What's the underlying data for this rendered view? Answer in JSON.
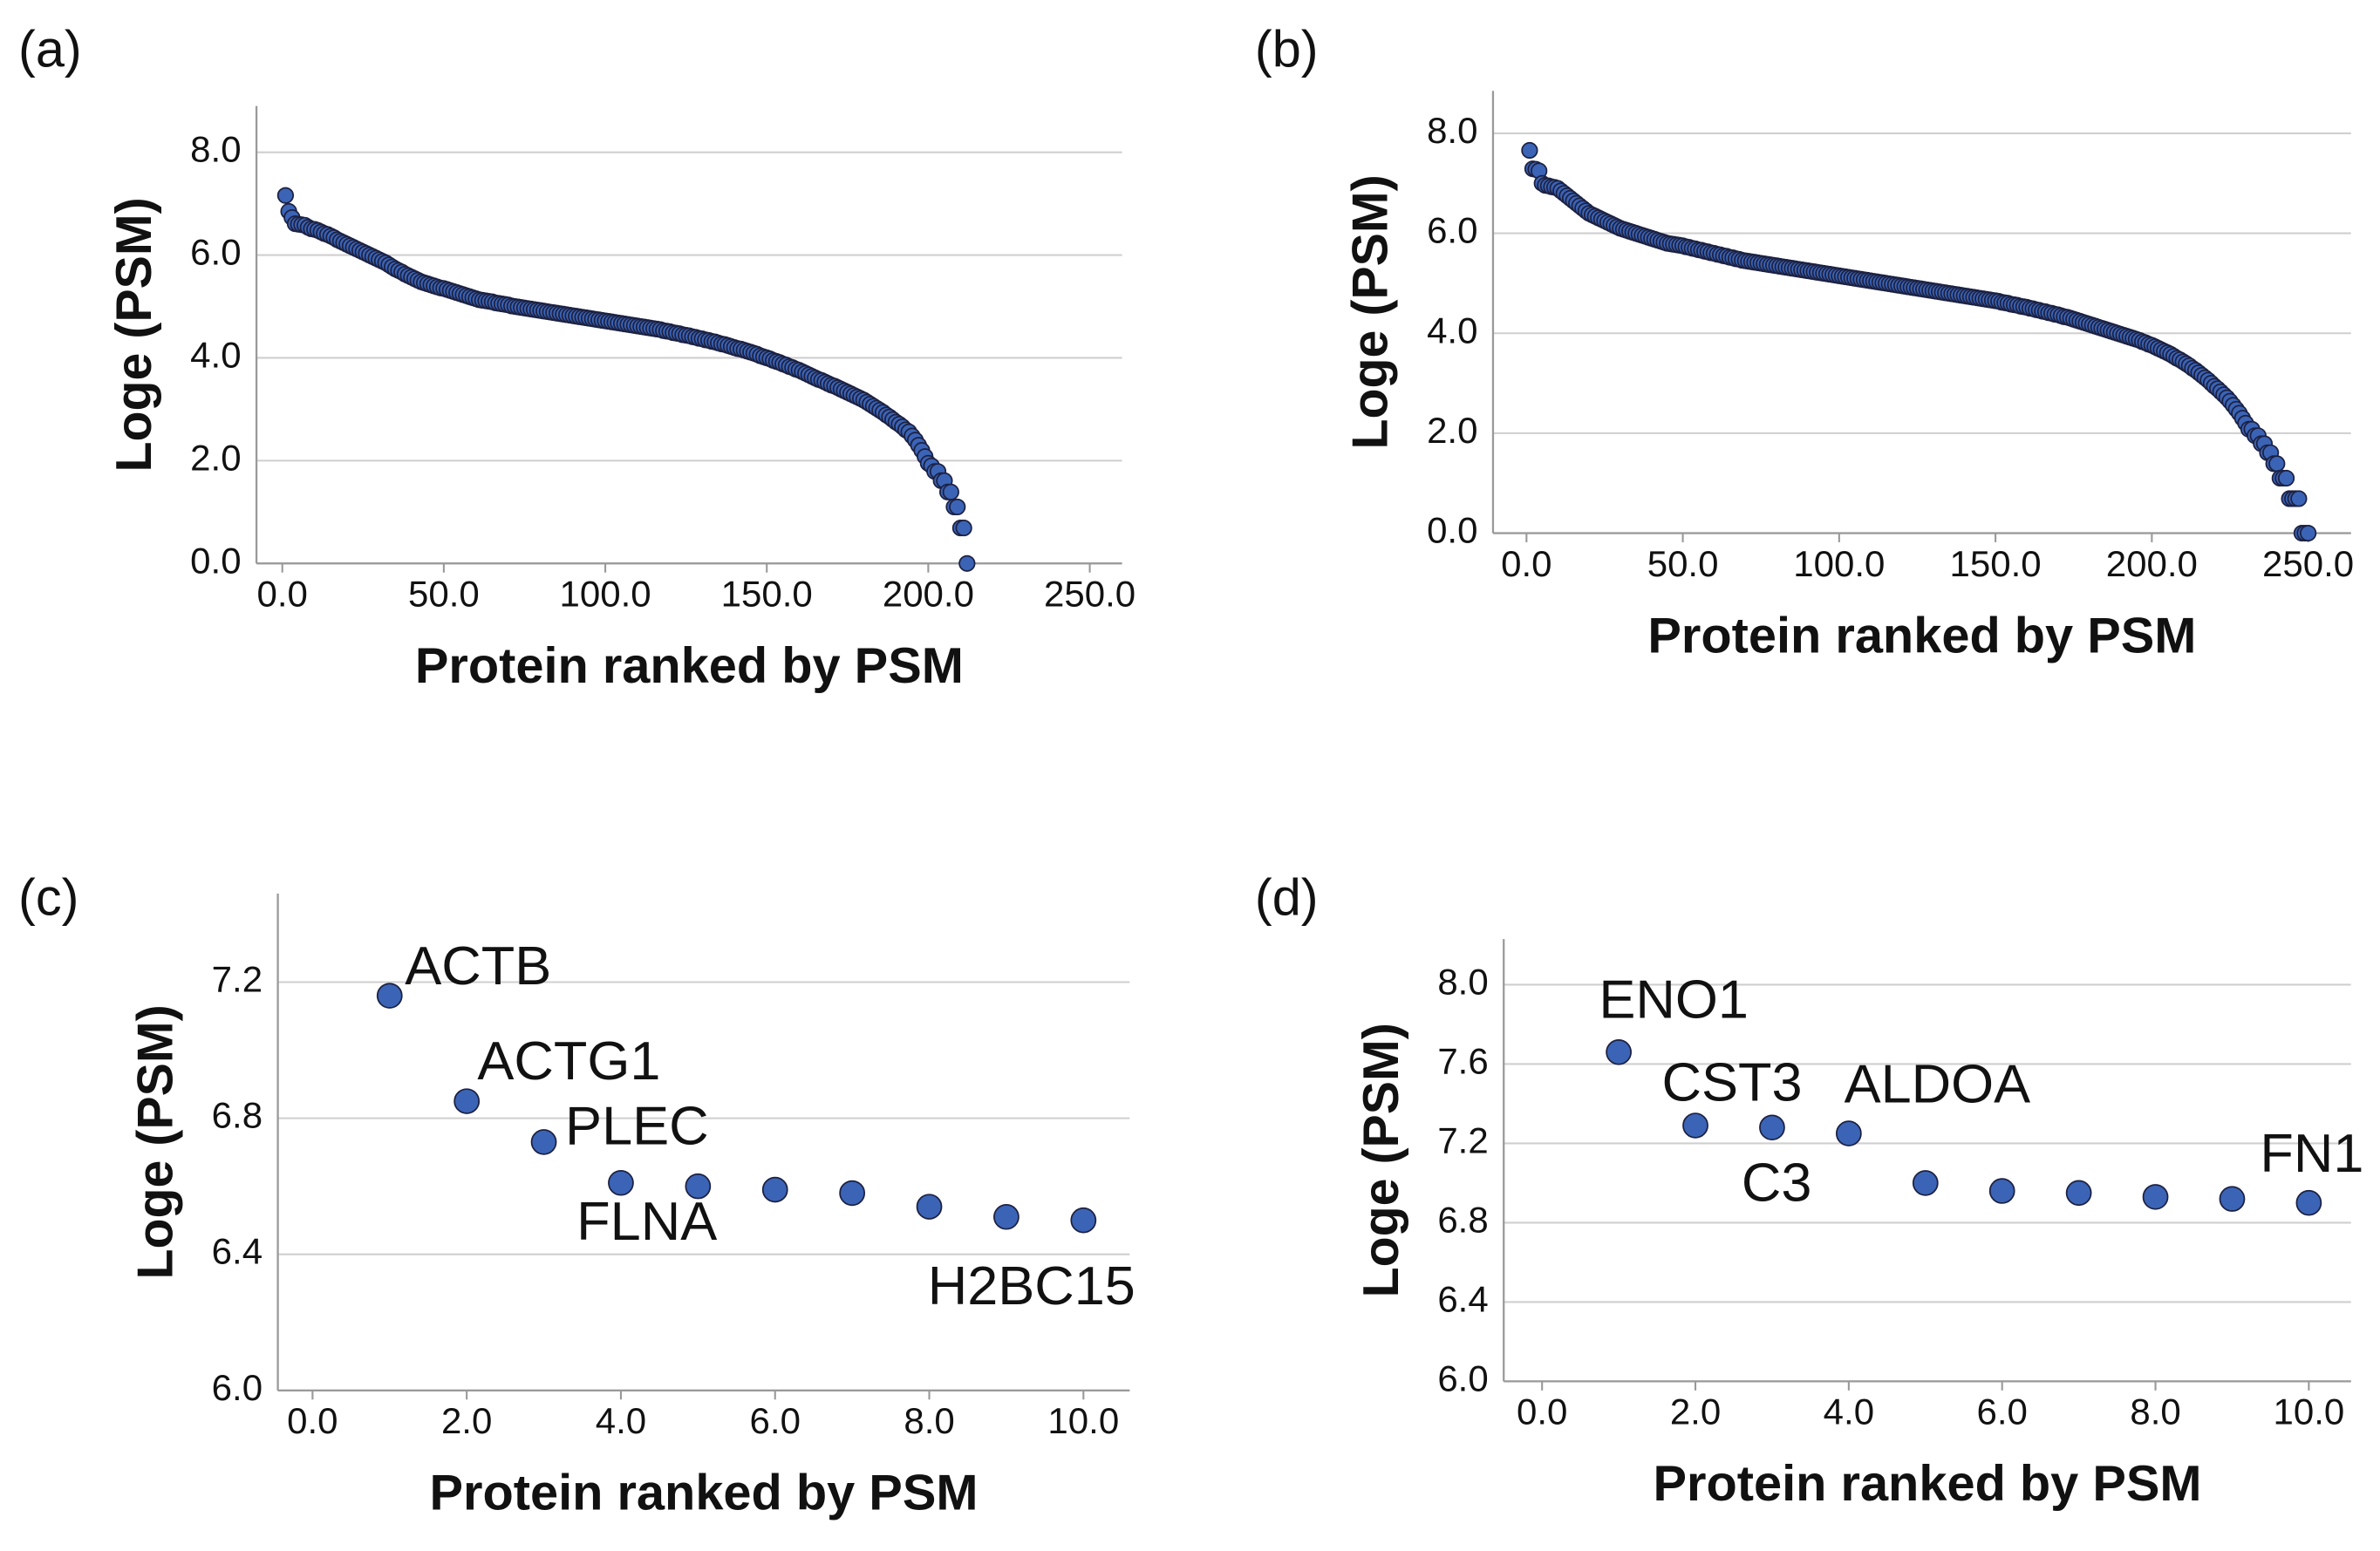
{
  "chart_data": [
    {
      "type": "scatter",
      "panel": "(a)",
      "xlabel": "Protein ranked by PSM",
      "ylabel": "Loge (PSM)",
      "color": "#3b64b6",
      "grid": true,
      "xlim": [
        -8,
        260
      ],
      "ylim": [
        0,
        8.9
      ],
      "xticks": [
        {
          "value": 0,
          "label": "0.0"
        },
        {
          "value": 50,
          "label": "50.0"
        },
        {
          "value": 100,
          "label": "100.0"
        },
        {
          "value": 150,
          "label": "150.0"
        },
        {
          "value": 200,
          "label": "200.0"
        },
        {
          "value": 250,
          "label": "250.0"
        }
      ],
      "yticks": [
        {
          "value": 0,
          "label": "0.0"
        },
        {
          "value": 2,
          "label": "2.0"
        },
        {
          "value": 4,
          "label": "4.0"
        },
        {
          "value": 6,
          "label": "6.0"
        },
        {
          "value": 8,
          "label": "8.0"
        }
      ],
      "x": [
        1,
        2,
        3,
        4,
        5,
        6,
        7,
        8,
        9,
        10,
        11,
        12,
        13,
        14,
        15,
        16,
        17,
        18,
        19,
        20,
        21,
        22,
        23,
        24,
        25,
        26,
        27,
        28,
        29,
        30,
        31,
        32,
        33,
        34,
        35,
        36,
        37,
        38,
        39,
        40,
        41,
        42,
        43,
        44,
        45,
        46,
        47,
        48,
        49,
        50,
        51,
        52,
        53,
        54,
        55,
        56,
        57,
        58,
        59,
        60,
        61,
        62,
        63,
        64,
        65,
        66,
        67,
        68,
        69,
        70,
        71,
        72,
        73,
        74,
        75,
        76,
        77,
        78,
        79,
        80,
        81,
        82,
        83,
        84,
        85,
        86,
        87,
        88,
        89,
        90,
        91,
        92,
        93,
        94,
        95,
        96,
        97,
        98,
        99,
        100,
        101,
        102,
        103,
        104,
        105,
        106,
        107,
        108,
        109,
        110,
        111,
        112,
        113,
        114,
        115,
        116,
        117,
        118,
        119,
        120,
        121,
        122,
        123,
        124,
        125,
        126,
        127,
        128,
        129,
        130,
        131,
        132,
        133,
        134,
        135,
        136,
        137,
        138,
        139,
        140,
        141,
        142,
        143,
        144,
        145,
        146,
        147,
        148,
        149,
        150,
        151,
        152,
        153,
        154,
        155,
        156,
        157,
        158,
        159,
        160,
        161,
        162,
        163,
        164,
        165,
        166,
        167,
        168,
        169,
        170,
        171,
        172,
        173,
        174,
        175,
        176,
        177,
        178,
        179,
        180,
        181,
        182,
        183,
        184,
        185,
        186,
        187,
        188,
        189,
        190,
        191,
        192,
        193,
        194,
        195,
        196,
        197,
        198,
        199,
        200,
        201,
        202,
        203,
        204,
        205,
        206,
        207,
        208,
        209,
        210,
        211,
        212
      ],
      "values": [
        7.16,
        6.85,
        6.73,
        6.61,
        6.6,
        6.59,
        6.58,
        6.54,
        6.51,
        6.5,
        6.48,
        6.45,
        6.42,
        6.4,
        6.37,
        6.34,
        6.3,
        6.27,
        6.24,
        6.21,
        6.18,
        6.15,
        6.12,
        6.09,
        6.06,
        6.03,
        6.0,
        5.97,
        5.94,
        5.91,
        5.88,
        5.85,
        5.81,
        5.77,
        5.73,
        5.7,
        5.67,
        5.63,
        5.6,
        5.57,
        5.54,
        5.51,
        5.48,
        5.46,
        5.44,
        5.42,
        5.4,
        5.38,
        5.36,
        5.35,
        5.33,
        5.31,
        5.29,
        5.27,
        5.25,
        5.23,
        5.21,
        5.19,
        5.17,
        5.15,
        5.13,
        5.12,
        5.11,
        5.1,
        5.09,
        5.07,
        5.06,
        5.05,
        5.04,
        5.03,
        5.01,
        5.0,
        4.99,
        4.98,
        4.97,
        4.96,
        4.95,
        4.94,
        4.93,
        4.92,
        4.91,
        4.9,
        4.89,
        4.88,
        4.87,
        4.86,
        4.85,
        4.84,
        4.83,
        4.82,
        4.81,
        4.8,
        4.79,
        4.78,
        4.77,
        4.76,
        4.75,
        4.74,
        4.73,
        4.72,
        4.71,
        4.7,
        4.69,
        4.68,
        4.67,
        4.66,
        4.65,
        4.64,
        4.63,
        4.62,
        4.61,
        4.6,
        4.59,
        4.58,
        4.57,
        4.56,
        4.55,
        4.53,
        4.52,
        4.51,
        4.49,
        4.48,
        4.47,
        4.45,
        4.44,
        4.43,
        4.41,
        4.4,
        4.38,
        4.37,
        4.35,
        4.34,
        4.32,
        4.31,
        4.29,
        4.27,
        4.26,
        4.24,
        4.22,
        4.2,
        4.18,
        4.17,
        4.15,
        4.13,
        4.11,
        4.09,
        4.07,
        4.04,
        4.02,
        4.0,
        3.98,
        3.95,
        3.93,
        3.91,
        3.88,
        3.86,
        3.83,
        3.81,
        3.78,
        3.76,
        3.73,
        3.7,
        3.67,
        3.64,
        3.61,
        3.58,
        3.56,
        3.53,
        3.5,
        3.47,
        3.45,
        3.42,
        3.39,
        3.36,
        3.33,
        3.3,
        3.27,
        3.24,
        3.21,
        3.18,
        3.14,
        3.1,
        3.06,
        3.02,
        2.98,
        2.94,
        2.89,
        2.85,
        2.8,
        2.75,
        2.71,
        2.66,
        2.6,
        2.56,
        2.48,
        2.4,
        2.3,
        2.2,
        2.08,
        1.95,
        1.9,
        1.79,
        1.79,
        1.61,
        1.61,
        1.39,
        1.39,
        1.1,
        1.1,
        0.69,
        0.69,
        0
      ]
    },
    {
      "type": "scatter",
      "panel": "(b)",
      "xlabel": "Protein ranked by PSM",
      "ylabel": "Loge (PSM)",
      "color": "#3b64b6",
      "grid": true,
      "xlim": [
        -10.7,
        263.7
      ],
      "ylim": [
        0,
        8.85
      ],
      "xticks": [
        {
          "value": 0,
          "label": "0.0"
        },
        {
          "value": 50,
          "label": "50.0"
        },
        {
          "value": 100,
          "label": "100.0"
        },
        {
          "value": 150,
          "label": "150.0"
        },
        {
          "value": 200,
          "label": "200.0"
        },
        {
          "value": 250,
          "label": "250.0"
        }
      ],
      "yticks": [
        {
          "value": 0,
          "label": "0.0"
        },
        {
          "value": 2,
          "label": "2.0"
        },
        {
          "value": 4,
          "label": "4.0"
        },
        {
          "value": 6,
          "label": "6.0"
        },
        {
          "value": 8,
          "label": "8.0"
        }
      ],
      "x": [
        1,
        2,
        3,
        4,
        5,
        6,
        7,
        8,
        9,
        10,
        11,
        12,
        13,
        14,
        15,
        16,
        17,
        18,
        19,
        20,
        21,
        22,
        23,
        24,
        25,
        26,
        27,
        28,
        29,
        30,
        31,
        32,
        33,
        34,
        35,
        36,
        37,
        38,
        39,
        40,
        41,
        42,
        43,
        44,
        45,
        46,
        47,
        48,
        49,
        50,
        51,
        52,
        53,
        54,
        55,
        56,
        57,
        58,
        59,
        60,
        61,
        62,
        63,
        64,
        65,
        66,
        67,
        68,
        69,
        70,
        71,
        72,
        73,
        74,
        75,
        76,
        77,
        78,
        79,
        80,
        81,
        82,
        83,
        84,
        85,
        86,
        87,
        88,
        89,
        90,
        91,
        92,
        93,
        94,
        95,
        96,
        97,
        98,
        99,
        100,
        101,
        102,
        103,
        104,
        105,
        106,
        107,
        108,
        109,
        110,
        111,
        112,
        113,
        114,
        115,
        116,
        117,
        118,
        119,
        120,
        121,
        122,
        123,
        124,
        125,
        126,
        127,
        128,
        129,
        130,
        131,
        132,
        133,
        134,
        135,
        136,
        137,
        138,
        139,
        140,
        141,
        142,
        143,
        144,
        145,
        146,
        147,
        148,
        149,
        150,
        151,
        152,
        153,
        154,
        155,
        156,
        157,
        158,
        159,
        160,
        161,
        162,
        163,
        164,
        165,
        166,
        167,
        168,
        169,
        170,
        171,
        172,
        173,
        174,
        175,
        176,
        177,
        178,
        179,
        180,
        181,
        182,
        183,
        184,
        185,
        186,
        187,
        188,
        189,
        190,
        191,
        192,
        193,
        194,
        195,
        196,
        197,
        198,
        199,
        200,
        201,
        202,
        203,
        204,
        205,
        206,
        207,
        208,
        209,
        210,
        211,
        212,
        213,
        214,
        215,
        216,
        217,
        218,
        219,
        220,
        221,
        222,
        223,
        224,
        225,
        226,
        227,
        228,
        229,
        230,
        231,
        232,
        233,
        234,
        235,
        236,
        237,
        238,
        239,
        240,
        241,
        242,
        243,
        244,
        245,
        246,
        247,
        248,
        249,
        250
      ],
      "values": [
        7.66,
        7.29,
        7.28,
        7.25,
        7.0,
        6.96,
        6.95,
        6.93,
        6.92,
        6.9,
        6.85,
        6.8,
        6.75,
        6.7,
        6.65,
        6.6,
        6.55,
        6.5,
        6.45,
        6.4,
        6.37,
        6.34,
        6.31,
        6.28,
        6.25,
        6.22,
        6.19,
        6.16,
        6.13,
        6.1,
        6.08,
        6.06,
        6.04,
        6.02,
        6.0,
        5.98,
        5.96,
        5.94,
        5.92,
        5.9,
        5.88,
        5.86,
        5.84,
        5.82,
        5.8,
        5.79,
        5.78,
        5.77,
        5.76,
        5.75,
        5.73,
        5.72,
        5.7,
        5.69,
        5.67,
        5.66,
        5.64,
        5.63,
        5.61,
        5.6,
        5.58,
        5.57,
        5.55,
        5.54,
        5.52,
        5.51,
        5.49,
        5.48,
        5.46,
        5.45,
        5.44,
        5.43,
        5.42,
        5.41,
        5.4,
        5.39,
        5.38,
        5.37,
        5.36,
        5.35,
        5.34,
        5.33,
        5.32,
        5.31,
        5.3,
        5.29,
        5.28,
        5.27,
        5.26,
        5.25,
        5.24,
        5.23,
        5.22,
        5.21,
        5.2,
        5.19,
        5.18,
        5.17,
        5.16,
        5.15,
        5.14,
        5.13,
        5.12,
        5.11,
        5.1,
        5.09,
        5.08,
        5.07,
        5.06,
        5.05,
        5.04,
        5.03,
        5.02,
        5.01,
        5.0,
        4.99,
        4.98,
        4.97,
        4.96,
        4.95,
        4.94,
        4.93,
        4.92,
        4.91,
        4.9,
        4.89,
        4.88,
        4.87,
        4.86,
        4.85,
        4.84,
        4.83,
        4.82,
        4.81,
        4.8,
        4.79,
        4.78,
        4.77,
        4.76,
        4.75,
        4.74,
        4.73,
        4.72,
        4.71,
        4.7,
        4.69,
        4.68,
        4.67,
        4.66,
        4.65,
        4.64,
        4.62,
        4.61,
        4.6,
        4.58,
        4.57,
        4.56,
        4.54,
        4.53,
        4.52,
        4.5,
        4.49,
        4.47,
        4.46,
        4.44,
        4.43,
        4.41,
        4.4,
        4.38,
        4.37,
        4.35,
        4.33,
        4.32,
        4.3,
        4.28,
        4.26,
        4.24,
        4.22,
        4.2,
        4.18,
        4.16,
        4.14,
        4.12,
        4.1,
        4.08,
        4.06,
        4.04,
        4.02,
        4.0,
        3.98,
        3.96,
        3.94,
        3.92,
        3.9,
        3.88,
        3.86,
        3.83,
        3.81,
        3.78,
        3.76,
        3.73,
        3.7,
        3.67,
        3.64,
        3.61,
        3.58,
        3.54,
        3.5,
        3.47,
        3.43,
        3.39,
        3.35,
        3.3,
        3.26,
        3.21,
        3.16,
        3.11,
        3.06,
        3.0,
        2.94,
        2.89,
        2.83,
        2.77,
        2.71,
        2.64,
        2.56,
        2.48,
        2.4,
        2.3,
        2.2,
        2.08,
        2.08,
        1.95,
        1.95,
        1.79,
        1.79,
        1.61,
        1.61,
        1.39,
        1.39,
        1.1,
        1.1,
        1.1,
        0.69,
        0.69,
        0.69,
        0.69,
        0,
        0,
        0
      ]
    },
    {
      "type": "scatter",
      "panel": "(c)",
      "xlabel": "Protein ranked by PSM",
      "ylabel": "Loge (PSM)",
      "color": "#3b64b6",
      "grid": true,
      "xlim": [
        -0.45,
        10.6
      ],
      "ylim": [
        6.0,
        7.46
      ],
      "xticks": [
        {
          "value": 0,
          "label": "0.0"
        },
        {
          "value": 2,
          "label": "2.0"
        },
        {
          "value": 4,
          "label": "4.0"
        },
        {
          "value": 6,
          "label": "6.0"
        },
        {
          "value": 8,
          "label": "8.0"
        },
        {
          "value": 10,
          "label": "10.0"
        }
      ],
      "yticks": [
        {
          "value": 6,
          "label": "6.0"
        },
        6.4,
        6.8,
        7.2
      ],
      "x": [
        1,
        2,
        3,
        4,
        5,
        6,
        7,
        8,
        9,
        10
      ],
      "values": [
        7.16,
        6.85,
        6.73,
        6.61,
        6.6,
        6.59,
        6.58,
        6.54,
        6.51,
        6.5
      ],
      "point_labels": [
        "ACTB",
        "ACTG1",
        "PLEC",
        "FLNA",
        null,
        null,
        null,
        null,
        null,
        "H2BC15"
      ]
    },
    {
      "type": "scatter",
      "panel": "(d)",
      "xlabel": "Protein ranked by PSM",
      "ylabel": "Loge (PSM)",
      "color": "#3b64b6",
      "grid": true,
      "xlim": [
        -0.5,
        10.55
      ],
      "ylim": [
        6.0,
        8.23
      ],
      "xticks": [
        {
          "value": 0,
          "label": "0.0"
        },
        {
          "value": 2,
          "label": "2.0"
        },
        {
          "value": 4,
          "label": "4.0"
        },
        {
          "value": 6,
          "label": "6.0"
        },
        {
          "value": 8,
          "label": "8.0"
        },
        {
          "value": 10,
          "label": "10.0"
        }
      ],
      "yticks": [
        {
          "value": 6,
          "label": "6.0"
        },
        6.4,
        6.8,
        7.2,
        7.6,
        {
          "value": 8,
          "label": "8.0"
        }
      ],
      "x": [
        1,
        2,
        3,
        4,
        5,
        6,
        7,
        8,
        9,
        10
      ],
      "values": [
        7.66,
        7.29,
        7.28,
        7.25,
        7.0,
        6.96,
        6.95,
        6.93,
        6.92,
        6.9
      ],
      "point_labels": [
        "ENO1",
        "CST3",
        "C3",
        "ALDOA",
        null,
        null,
        null,
        null,
        null,
        "FN1"
      ]
    }
  ]
}
